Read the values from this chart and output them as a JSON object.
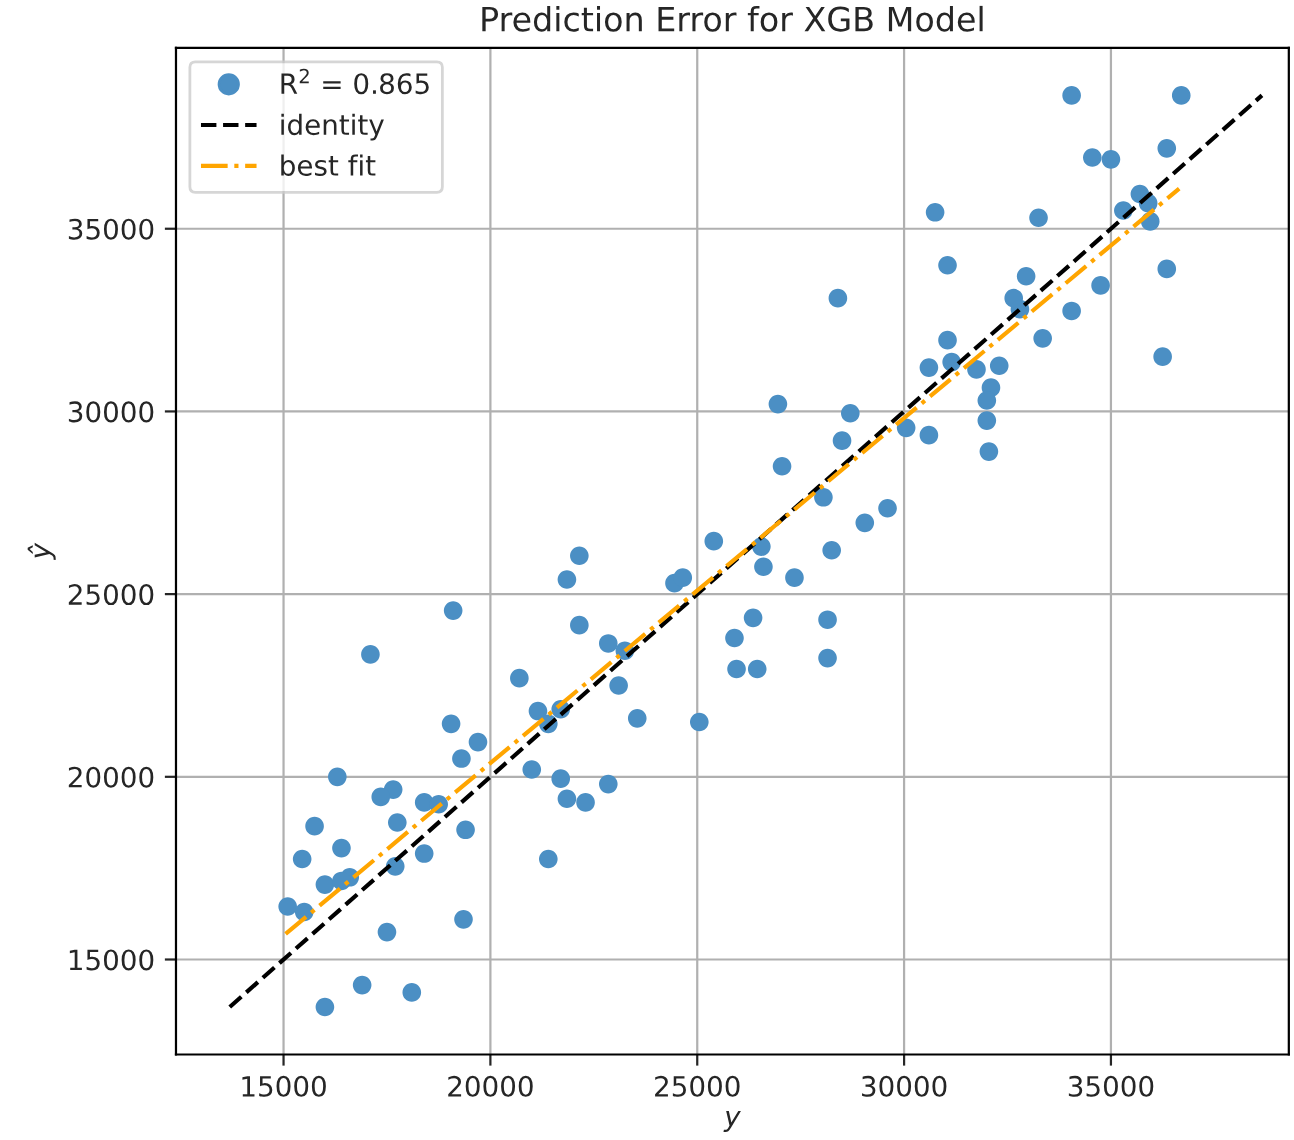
{
  "chart_data": {
    "type": "scatter",
    "title": "Prediction Error for XGB Model",
    "xlabel": "y",
    "ylabel": "ŷ",
    "xlim": [
      12400,
      39300
    ],
    "ylim": [
      12400,
      39950
    ],
    "xticks": [
      15000,
      20000,
      25000,
      30000,
      35000
    ],
    "yticks": [
      15000,
      20000,
      25000,
      30000,
      35000
    ],
    "grid": true,
    "legend": "top left",
    "series": [
      {
        "name": "R$^{2}$ = 0.865",
        "color": "#4b8fc4",
        "marker": "circle",
        "x": [
          25400,
          22150,
          21850,
          24450,
          24650,
          19100,
          22150,
          17100,
          22850,
          23250,
          20700,
          23100,
          23550,
          25050,
          21150,
          21700,
          21400,
          19050,
          19700,
          19300,
          21000,
          16300,
          21700,
          22850,
          17650,
          17350,
          18400,
          18750,
          21850,
          22300,
          17750,
          15750,
          19400,
          15450,
          16400,
          18400,
          17700,
          21400,
          16000,
          16600,
          16400,
          15100,
          15500,
          19350,
          17500,
          16900,
          18100,
          16000,
          26550,
          26600,
          27350,
          28250,
          29050,
          29600,
          26350,
          25900,
          25950,
          26450,
          28150,
          28150,
          34050,
          36700,
          34550,
          35000,
          36350,
          30750,
          33250,
          35700,
          35300,
          35900,
          35950,
          31050,
          36350,
          32950,
          32650,
          32800,
          34050,
          34750,
          28400,
          33350,
          36250,
          31050,
          30600,
          31150,
          31750,
          32300,
          32100,
          32000,
          32000,
          32050,
          26950,
          28700,
          28500,
          27050,
          30050,
          30600,
          28050
        ],
        "values": [
          26450,
          26050,
          25400,
          25300,
          25450,
          24550,
          24150,
          23350,
          23650,
          23450,
          22700,
          22500,
          21600,
          21500,
          21800,
          21850,
          21450,
          21450,
          20950,
          20500,
          20200,
          20000,
          19950,
          19800,
          19650,
          19450,
          19300,
          19250,
          19400,
          19300,
          18750,
          18650,
          18550,
          17750,
          18050,
          17900,
          17550,
          17750,
          17050,
          17250,
          17150,
          16450,
          16300,
          16100,
          15750,
          14300,
          14100,
          13700,
          26300,
          25750,
          25450,
          26200,
          26950,
          27350,
          24350,
          23800,
          22950,
          22950,
          24300,
          23250,
          38650,
          38650,
          36950,
          36900,
          37200,
          35450,
          35300,
          35950,
          35500,
          35700,
          35200,
          34000,
          33900,
          33700,
          33100,
          32800,
          32750,
          33450,
          33100,
          32000,
          31500,
          31950,
          31200,
          31350,
          31150,
          31250,
          30650,
          30300,
          29750,
          28900,
          30200,
          29950,
          29200,
          28500,
          29550,
          29350,
          27650
        ]
      },
      {
        "name": "identity",
        "type": "line",
        "color": "#000000",
        "line_style": "dashed",
        "x": [
          13700,
          38650
        ],
        "values": [
          13700,
          38650
        ]
      },
      {
        "name": "best fit",
        "type": "line",
        "color": "#ffa500",
        "line_style": "dashdot",
        "x": [
          15050,
          36650
        ],
        "values": [
          15700,
          36100
        ]
      }
    ]
  }
}
